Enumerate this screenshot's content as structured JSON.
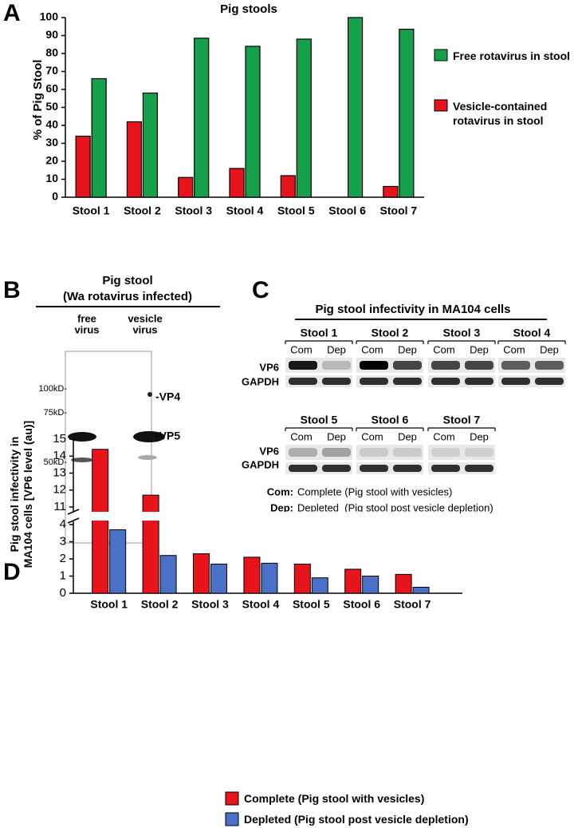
{
  "panel_labels": [
    "A",
    "B",
    "C",
    "D"
  ],
  "chart_data": [
    {
      "type": "bar",
      "title": "Pig stools",
      "y_label": "% of Pig Stool",
      "categories": [
        "Stool 1",
        "Stool 2",
        "Stool 3",
        "Stool 4",
        "Stool 5",
        "Stool 6",
        "Stool 7"
      ],
      "series": [
        {
          "name": "Vesicle-contained rotavirus in stool",
          "color": "#e8141c",
          "values": [
            34,
            42,
            11,
            16,
            12,
            0,
            6
          ]
        },
        {
          "name": "Free rotavirus in stool",
          "color": "#17a04c",
          "values": [
            66,
            58,
            88.5,
            84,
            88,
            100,
            93.5
          ]
        }
      ],
      "ylim": [
        0,
        100
      ],
      "yticks": [
        0,
        10,
        20,
        30,
        40,
        50,
        60,
        70,
        80,
        90,
        100
      ],
      "legend": "right"
    },
    {
      "type": "bar",
      "y_label": "Pig stool infectivity in MA104 cells [VP6 level (au)]",
      "categories": [
        "Stool 1",
        "Stool 2",
        "Stool 3",
        "Stool 4",
        "Stool 5",
        "Stool 6",
        "Stool 7"
      ],
      "series": [
        {
          "name": "Complete (Pig stool with vesicles)",
          "color": "#e8141c",
          "values": [
            14.4,
            11.7,
            2.3,
            2.1,
            1.7,
            1.4,
            1.1
          ]
        },
        {
          "name": "Depleted (Pig stool post vesicle depletion)",
          "color": "#4a70c8",
          "values": [
            3.7,
            2.2,
            1.7,
            1.75,
            0.9,
            1.0,
            0.35
          ]
        }
      ],
      "ylim": [
        0,
        15
      ],
      "axis_break": [
        4,
        11
      ],
      "yticks": [
        0,
        1,
        2,
        3,
        4,
        11,
        12,
        13,
        14,
        15
      ],
      "legend": "bottom"
    }
  ],
  "blot_b": {
    "title": [
      "Pig stool",
      "(Wa rotavirus infected)"
    ],
    "lanes": [
      [
        "free",
        "virus"
      ],
      [
        "vesicle",
        "virus"
      ]
    ],
    "markers": [
      "100kD-",
      "75kD-",
      "50kD-"
    ],
    "bands": [
      "-VP4",
      "-VP5"
    ]
  },
  "blot_c": {
    "title": "Pig stool infectivity in MA104 cells",
    "blots": [
      {
        "label": "Stool 1",
        "lanes": [
          "Com",
          "Dep"
        ]
      },
      {
        "label": "Stool 2",
        "lanes": [
          "Com",
          "Dep"
        ]
      },
      {
        "label": "Stool 3",
        "lanes": [
          "Com",
          "Dep"
        ]
      },
      {
        "label": "Stool 4",
        "lanes": [
          "Com",
          "Dep"
        ]
      },
      {
        "label": "Stool 5",
        "lanes": [
          "Com",
          "Dep"
        ]
      },
      {
        "label": "Stool 6",
        "lanes": [
          "Com",
          "Dep"
        ]
      },
      {
        "label": "Stool 7",
        "lanes": [
          "Com",
          "Dep"
        ]
      }
    ],
    "row_labels": [
      [
        "VP6",
        "GAPDH"
      ],
      [
        "VP6",
        "GAPDH"
      ]
    ],
    "notes": [
      [
        "Com:",
        "Complete (Pig stool with vesicles)"
      ],
      [
        "Dep:",
        "Depleted  (Pig stool post vesicle depletion)"
      ]
    ]
  }
}
